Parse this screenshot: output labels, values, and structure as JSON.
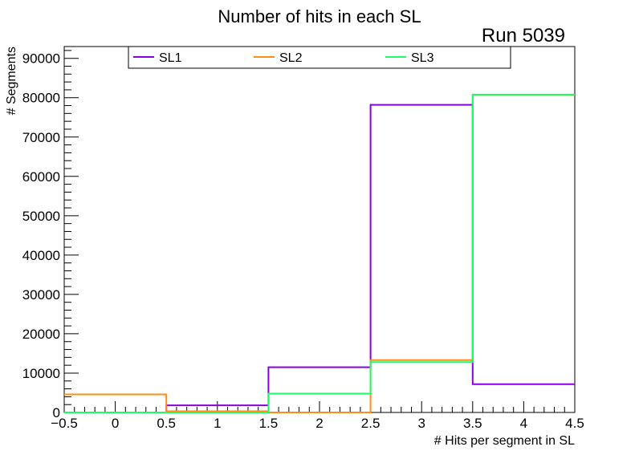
{
  "chart_data": {
    "type": "histogram-step",
    "title": "Number of hits in each SL",
    "annotation": "Run 5039",
    "xlabel": "# Hits per segment in SL",
    "ylabel": "# Segments",
    "xlim": [
      -0.5,
      4.5
    ],
    "ylim": [
      0,
      93000
    ],
    "x_ticks": [
      "−0.5",
      "0",
      "0.5",
      "1",
      "1.5",
      "2",
      "2.5",
      "3",
      "3.5",
      "4",
      "4.5"
    ],
    "x_tick_values": [
      -0.5,
      0,
      0.5,
      1,
      1.5,
      2,
      2.5,
      3,
      3.5,
      4,
      4.5
    ],
    "y_ticks": [
      "0",
      "10000",
      "20000",
      "30000",
      "40000",
      "50000",
      "60000",
      "70000",
      "80000",
      "90000"
    ],
    "y_tick_values": [
      0,
      10000,
      20000,
      30000,
      40000,
      50000,
      60000,
      70000,
      80000,
      90000
    ],
    "bin_edges": [
      -0.5,
      0.5,
      1.5,
      2.5,
      3.5,
      4.5
    ],
    "legend": "top",
    "grid": false,
    "series": [
      {
        "name": "SL1",
        "color": "#8b00e0",
        "values": [
          0,
          1800,
          11500,
          78200,
          7200
        ]
      },
      {
        "name": "SL2",
        "color": "#ff8c1a",
        "values": [
          4600,
          300,
          0,
          13300,
          80700
        ]
      },
      {
        "name": "SL3",
        "color": "#1aff66",
        "values": [
          0,
          0,
          4800,
          12800,
          80800
        ]
      }
    ]
  }
}
